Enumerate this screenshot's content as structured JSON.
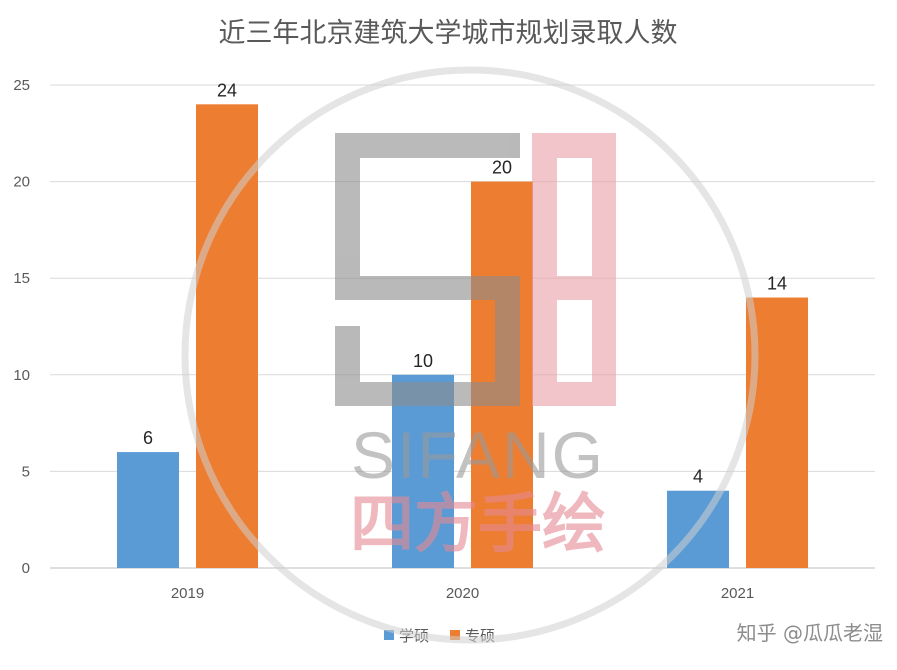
{
  "chart_data": {
    "type": "bar",
    "title": "近三年北京建筑大学城市规划录取人数",
    "categories": [
      "2019",
      "2020",
      "2021"
    ],
    "series": [
      {
        "name": "学硕",
        "values": [
          6,
          10,
          4
        ],
        "color": "#5b9bd5"
      },
      {
        "name": "专硕",
        "values": [
          24,
          20,
          14
        ],
        "color": "#ed7d31"
      }
    ],
    "xlabel": "",
    "ylabel": "",
    "ylim": [
      0,
      25
    ],
    "yticks": [
      0,
      5,
      10,
      15,
      20,
      25
    ],
    "grid": true,
    "legend": "bottom-center",
    "data_labels": true
  },
  "watermark": {
    "text_latin": "SIFANG",
    "text_cn": "四方手绘",
    "icon": "sifang-logo-icon"
  },
  "credit": "知乎 @瓜瓜老湿"
}
